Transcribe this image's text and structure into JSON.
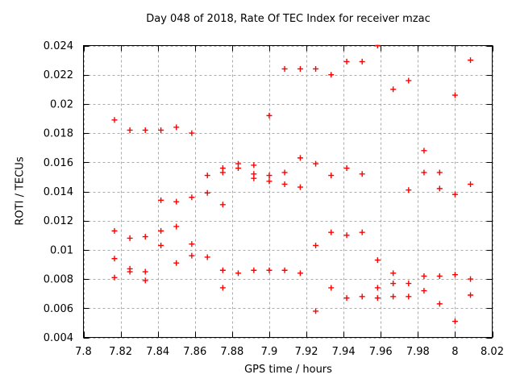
{
  "figure": {
    "background": "#ffffff"
  },
  "chart_data": {
    "type": "scatter",
    "title": "Day 048 of 2018, Rate Of TEC Index for receiver mzac",
    "xlabel": "GPS time / hours",
    "ylabel": "ROTI / TECUs",
    "xlim": [
      7.8,
      8.02
    ],
    "ylim": [
      0.004,
      0.024
    ],
    "xticks": [
      7.8,
      7.82,
      7.84,
      7.86,
      7.88,
      7.9,
      7.92,
      7.94,
      7.96,
      7.98,
      8.0,
      8.02
    ],
    "xtick_labels": [
      "7.8",
      "7.82",
      "7.84",
      "7.86",
      "7.88",
      "7.9",
      "7.92",
      "7.94",
      "7.96",
      "7.98",
      "8",
      "8.02"
    ],
    "yticks": [
      0.004,
      0.006,
      0.008,
      0.01,
      0.012,
      0.014,
      0.016,
      0.018,
      0.02,
      0.022,
      0.024
    ],
    "ytick_labels": [
      "0.004",
      "0.006",
      "0.008",
      "0.01",
      "0.012",
      "0.014",
      "0.016",
      "0.018",
      "0.02",
      "0.022",
      "0.024"
    ],
    "grid": true,
    "legend": "none",
    "marker": "plus",
    "marker_color": "#ff0000",
    "grid_color": "#aaaaaa",
    "border_color": "#000000",
    "points": [
      [
        7.8167,
        0.0189
      ],
      [
        7.8167,
        0.0113
      ],
      [
        7.8167,
        0.0094
      ],
      [
        7.8167,
        0.0081
      ],
      [
        7.825,
        0.0182
      ],
      [
        7.825,
        0.0108
      ],
      [
        7.825,
        0.0087
      ],
      [
        7.825,
        0.0085
      ],
      [
        7.8333,
        0.0182
      ],
      [
        7.8333,
        0.0109
      ],
      [
        7.8333,
        0.0085
      ],
      [
        7.8333,
        0.0079
      ],
      [
        7.8417,
        0.0182
      ],
      [
        7.8417,
        0.0134
      ],
      [
        7.8417,
        0.0113
      ],
      [
        7.8417,
        0.0103
      ],
      [
        7.85,
        0.0184
      ],
      [
        7.85,
        0.0133
      ],
      [
        7.85,
        0.0116
      ],
      [
        7.85,
        0.0091
      ],
      [
        7.8583,
        0.018
      ],
      [
        7.8583,
        0.0136
      ],
      [
        7.8583,
        0.0104
      ],
      [
        7.8583,
        0.0096
      ],
      [
        7.8667,
        0.0151
      ],
      [
        7.8667,
        0.0139
      ],
      [
        7.8667,
        0.0095
      ],
      [
        7.875,
        0.0156
      ],
      [
        7.875,
        0.0153
      ],
      [
        7.875,
        0.0131
      ],
      [
        7.875,
        0.0086
      ],
      [
        7.875,
        0.0074
      ],
      [
        7.8833,
        0.0159
      ],
      [
        7.8833,
        0.0156
      ],
      [
        7.8833,
        0.0084
      ],
      [
        7.8917,
        0.0158
      ],
      [
        7.8917,
        0.0152
      ],
      [
        7.8917,
        0.0149
      ],
      [
        7.8917,
        0.0086
      ],
      [
        7.9,
        0.0192
      ],
      [
        7.9,
        0.0151
      ],
      [
        7.9,
        0.0147
      ],
      [
        7.9,
        0.0086
      ],
      [
        7.9083,
        0.0224
      ],
      [
        7.9083,
        0.0153
      ],
      [
        7.9083,
        0.0145
      ],
      [
        7.9083,
        0.0086
      ],
      [
        7.9167,
        0.0224
      ],
      [
        7.9167,
        0.0163
      ],
      [
        7.9167,
        0.0143
      ],
      [
        7.9167,
        0.0084
      ],
      [
        7.925,
        0.0224
      ],
      [
        7.925,
        0.0159
      ],
      [
        7.925,
        0.0103
      ],
      [
        7.925,
        0.0058
      ],
      [
        7.9333,
        0.022
      ],
      [
        7.9333,
        0.0151
      ],
      [
        7.9333,
        0.0112
      ],
      [
        7.9333,
        0.0074
      ],
      [
        7.9417,
        0.0229
      ],
      [
        7.9417,
        0.0156
      ],
      [
        7.9417,
        0.011
      ],
      [
        7.9417,
        0.0067
      ],
      [
        7.95,
        0.0229
      ],
      [
        7.95,
        0.0152
      ],
      [
        7.95,
        0.0112
      ],
      [
        7.95,
        0.0068
      ],
      [
        7.9583,
        0.024
      ],
      [
        7.9583,
        0.0093
      ],
      [
        7.9583,
        0.0074
      ],
      [
        7.9583,
        0.0067
      ],
      [
        7.9667,
        0.021
      ],
      [
        7.9667,
        0.0084
      ],
      [
        7.9667,
        0.0077
      ],
      [
        7.9667,
        0.0068
      ],
      [
        7.975,
        0.0216
      ],
      [
        7.975,
        0.0141
      ],
      [
        7.975,
        0.0077
      ],
      [
        7.975,
        0.0068
      ],
      [
        7.9833,
        0.0168
      ],
      [
        7.9833,
        0.0153
      ],
      [
        7.9833,
        0.0082
      ],
      [
        7.9833,
        0.0072
      ],
      [
        7.9917,
        0.0153
      ],
      [
        7.9917,
        0.0142
      ],
      [
        7.9917,
        0.0082
      ],
      [
        7.9917,
        0.0063
      ],
      [
        8.0,
        0.0206
      ],
      [
        8.0,
        0.0138
      ],
      [
        8.0,
        0.0083
      ],
      [
        8.0,
        0.0051
      ],
      [
        8.0083,
        0.023
      ],
      [
        8.0083,
        0.0145
      ],
      [
        8.0083,
        0.008
      ],
      [
        8.0083,
        0.0069
      ]
    ]
  }
}
